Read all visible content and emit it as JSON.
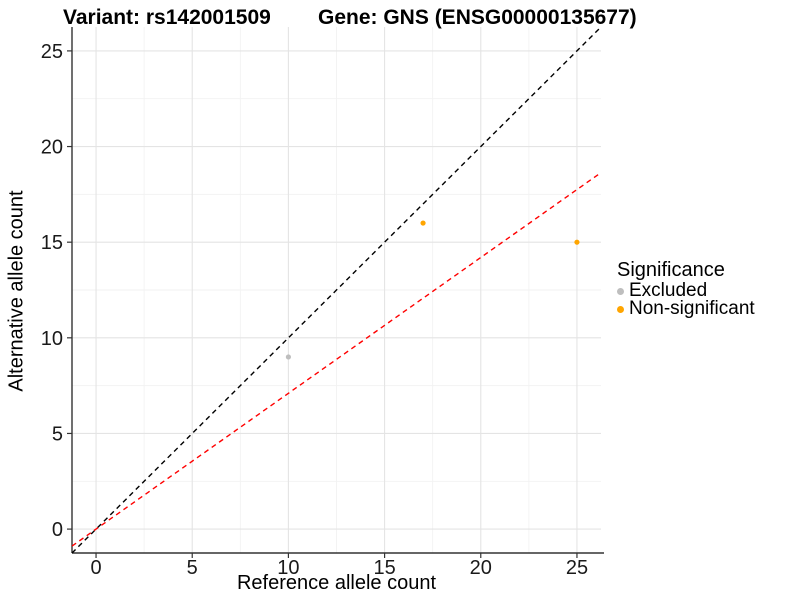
{
  "figure": {
    "title_left": "Variant: rs142001509",
    "title_right": "Gene: GNS (ENSG00000135677)"
  },
  "axes": {
    "x_label": "Reference allele count",
    "y_label": "Alternative allele count"
  },
  "legend": {
    "title": "Significance",
    "items": [
      {
        "label": "Excluded",
        "color": "#BEBEBE"
      },
      {
        "label": "Non-significant",
        "color": "#FFA500"
      }
    ]
  },
  "chart_data": {
    "type": "scatter",
    "title": "Variant: rs142001509   Gene: GNS (ENSG00000135677)",
    "xlabel": "Reference allele count",
    "ylabel": "Alternative allele count",
    "xlim": [
      -1.25,
      26.25
    ],
    "ylim": [
      -1.25,
      26.25
    ],
    "xticks": [
      0,
      5,
      10,
      15,
      20,
      25
    ],
    "yticks": [
      0,
      5,
      10,
      15,
      20,
      25
    ],
    "xminor": [
      2.5,
      7.5,
      12.5,
      17.5,
      22.5
    ],
    "yminor": [
      2.5,
      7.5,
      12.5,
      17.5,
      22.5
    ],
    "grid": true,
    "legend_title": "Significance",
    "legend_position": "right",
    "series": [
      {
        "name": "Excluded",
        "color": "#BEBEBE",
        "points": [
          {
            "x": 10,
            "y": 9
          }
        ]
      },
      {
        "name": "Non-significant",
        "color": "#FFA500",
        "points": [
          {
            "x": 17,
            "y": 16
          },
          {
            "x": 25,
            "y": 15
          }
        ]
      }
    ],
    "lines": [
      {
        "name": "identity-line",
        "color": "#000000",
        "dashed": true,
        "slope": 1,
        "intercept": 0
      },
      {
        "name": "expected-ratio-line",
        "color": "#FF0000",
        "dashed": true,
        "slope": 0.71,
        "intercept": 0
      }
    ],
    "style": {
      "grid_major_color": "#E4E4E4",
      "grid_minor_color": "#F2F2F2",
      "axis_line_color": "#333333",
      "tick_label_color": "#1A1A1A",
      "point_radius": 2.6
    }
  }
}
